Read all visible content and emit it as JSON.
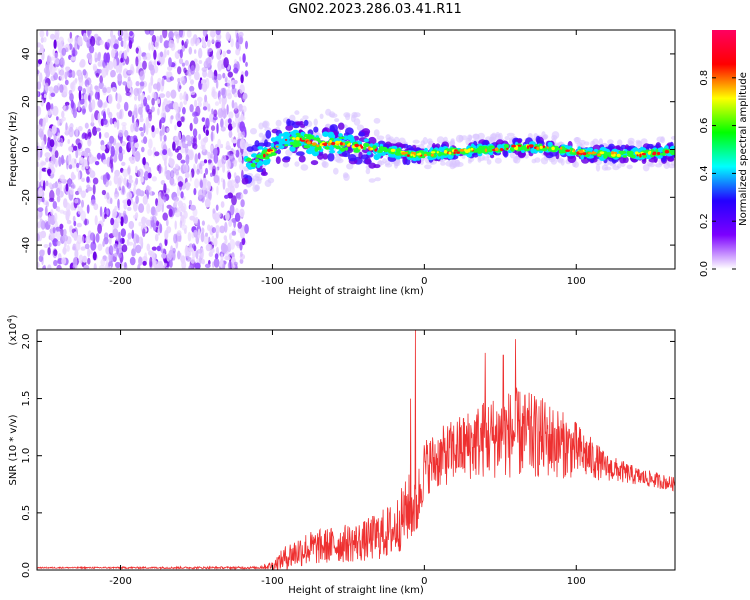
{
  "title": "GN02.2023.286.03.41.R11",
  "chart_data": [
    {
      "type": "heatmap",
      "xlabel": "Height of straight line (km)",
      "ylabel": "Frequency (Hz)",
      "xlim": [
        -255,
        165
      ],
      "ylim": [
        -50,
        50
      ],
      "xticks": [
        -200,
        -100,
        0,
        100
      ],
      "yticks": [
        -40,
        -20,
        0,
        20,
        40
      ],
      "ridge": {
        "x": [
          -120,
          -110,
          -100,
          -90,
          -80,
          -70,
          -60,
          -50,
          -40,
          -30,
          -20,
          -10,
          0,
          20,
          40,
          60,
          80,
          100,
          120,
          140,
          160
        ],
        "freq": [
          -6,
          -4,
          0,
          4,
          4,
          2,
          3,
          2,
          1,
          0,
          -1,
          -2,
          -2,
          -1,
          0,
          1,
          1,
          -1,
          -2,
          -2,
          -1
        ]
      },
      "noise_region_x": [
        -255,
        -117
      ],
      "colorbar": {
        "label": "Normalized spectral amplitude",
        "range": [
          0.0,
          1.0
        ],
        "ticks": [
          "0.0",
          "0.2",
          "0.4",
          "0.6",
          "0.8"
        ],
        "colors": [
          "#ffffff",
          "#7c00ff",
          "#2400ff",
          "#00ffff",
          "#00ff00",
          "#ffff00",
          "#ff0000",
          "#ff0060"
        ]
      }
    },
    {
      "type": "line",
      "xlabel": "Height of straight line (km)",
      "ylabel": "SNR (10 * v/v)",
      "scale_label": "(x10",
      "scale_exp": "4",
      "scale_close": ")",
      "xlim": [
        -255,
        165
      ],
      "ylim": [
        0,
        2.1
      ],
      "xticks": [
        -200,
        -100,
        0,
        100
      ],
      "yticks": [
        "0.0",
        "0.5",
        "1.0",
        "1.5",
        "2.0"
      ],
      "color": "#ee3030",
      "envelope": {
        "x": [
          -255,
          -110,
          -100,
          -90,
          -80,
          -60,
          -40,
          -20,
          -10,
          -5,
          0,
          20,
          40,
          60,
          80,
          100,
          120,
          140,
          165
        ],
        "mean": [
          0.02,
          0.02,
          0.04,
          0.12,
          0.18,
          0.22,
          0.25,
          0.35,
          0.55,
          0.55,
          0.9,
          1.05,
          1.15,
          1.2,
          1.15,
          1.05,
          0.9,
          0.82,
          0.75
        ],
        "amp": [
          0.005,
          0.01,
          0.04,
          0.12,
          0.15,
          0.16,
          0.18,
          0.25,
          0.3,
          0.3,
          0.25,
          0.28,
          0.35,
          0.4,
          0.35,
          0.25,
          0.12,
          0.08,
          0.06
        ]
      },
      "spikes": [
        {
          "x": -6,
          "y": 2.1
        },
        {
          "x": -9,
          "y": 1.5
        },
        {
          "x": 60,
          "y": 2.02
        },
        {
          "x": 40,
          "y": 1.9
        },
        {
          "x": 52,
          "y": 1.88
        }
      ]
    }
  ]
}
